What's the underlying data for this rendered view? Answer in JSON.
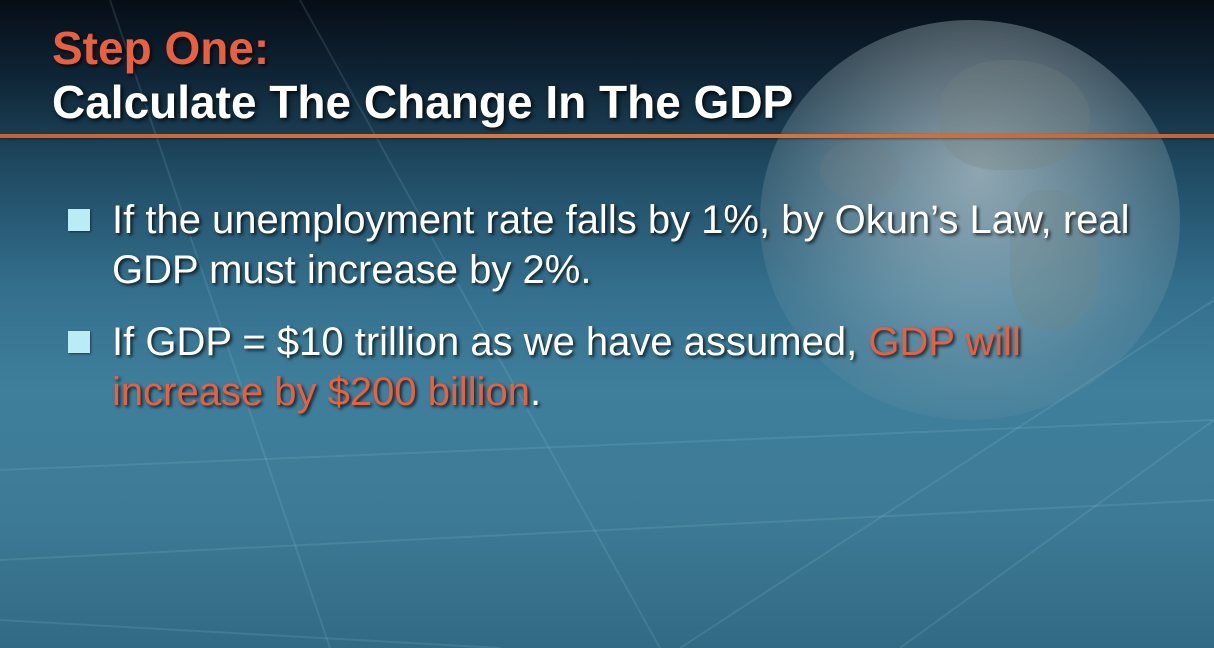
{
  "slide": {
    "title_line1": "Step One:",
    "title_line2": "Calculate The Change In The GDP",
    "bullets": [
      {
        "text": "If the unemployment rate falls by 1%, by Okun’s Law, real GDP must increase by 2%."
      },
      {
        "text_before": "If GDP = $10 trillion as we have assumed, ",
        "text_highlight": "GDP will increase by $200 billion",
        "text_after": "."
      }
    ]
  },
  "colors": {
    "accent": "#e8603f",
    "bullet_square": "#b9ecf4",
    "divider": "#e07a3e",
    "text": "#ffffff"
  }
}
